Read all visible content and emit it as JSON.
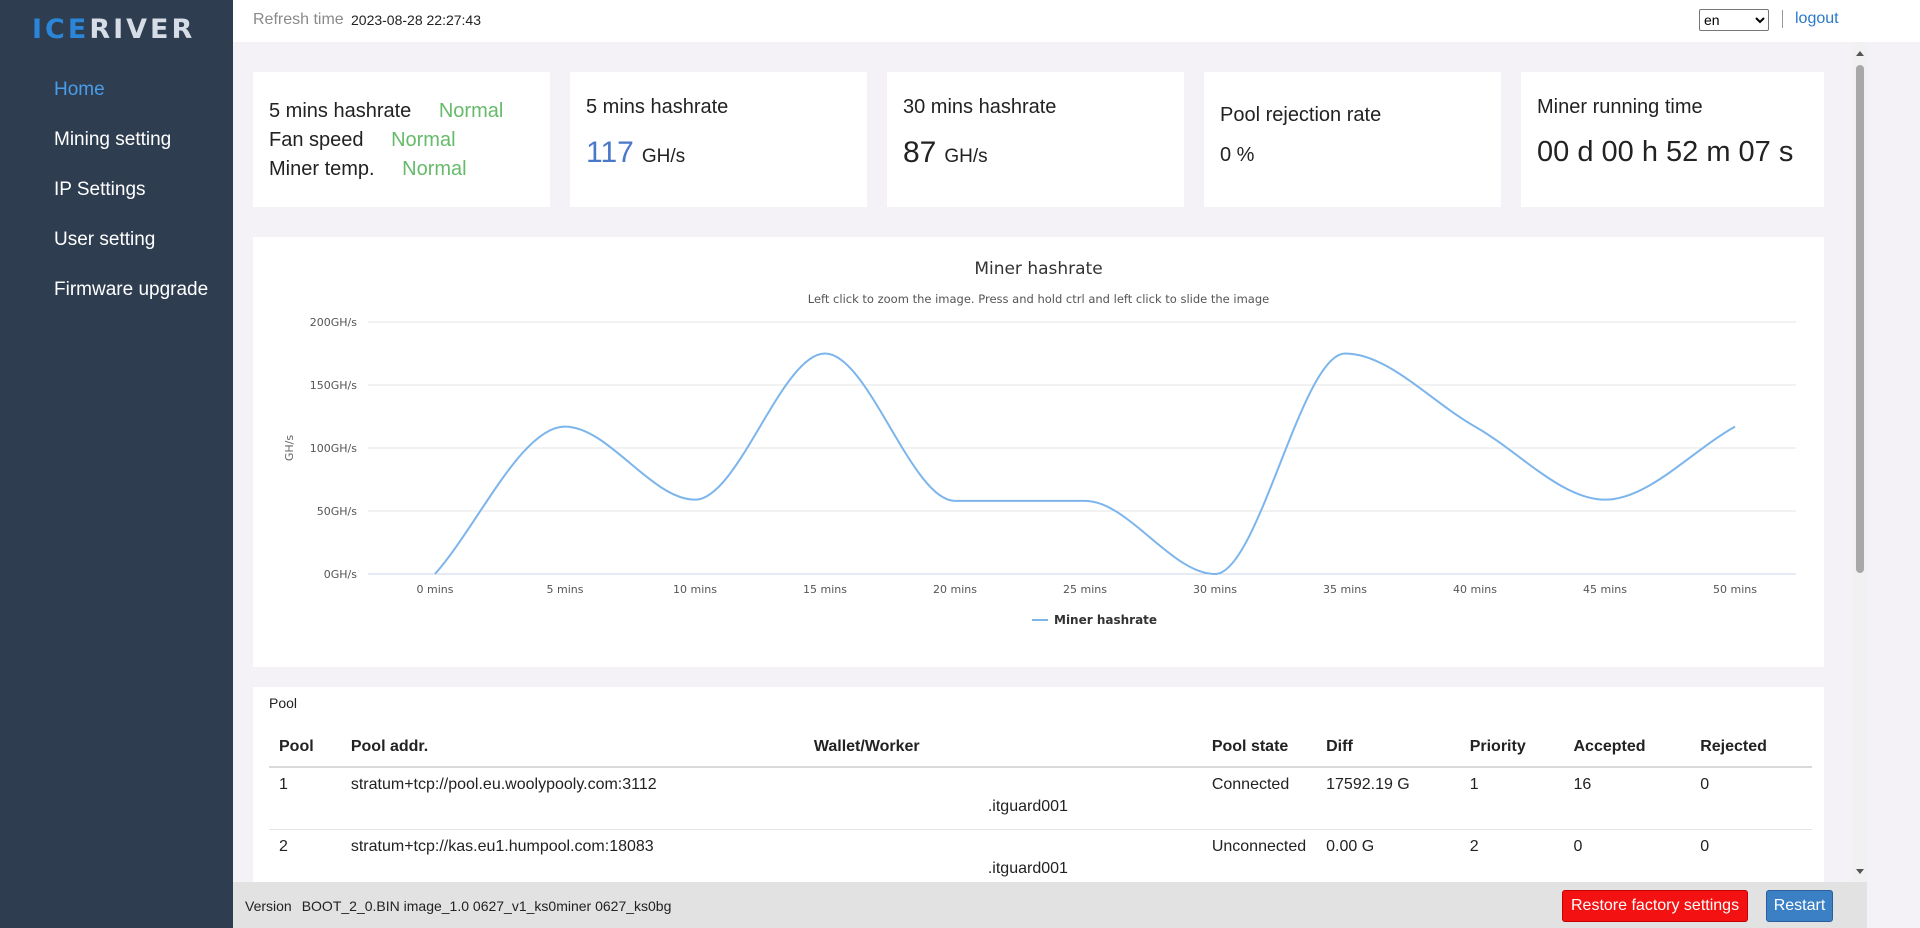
{
  "logo": {
    "part1": "ICE",
    "part2": "RIVER"
  },
  "sidebar": {
    "items": [
      {
        "label": "Home",
        "active": true
      },
      {
        "label": "Mining setting"
      },
      {
        "label": "IP Settings"
      },
      {
        "label": "User setting"
      },
      {
        "label": "Firmware upgrade"
      }
    ]
  },
  "header": {
    "refresh_label": "Refresh time",
    "refresh_value": "2023-08-28 22:27:43",
    "language": "en",
    "language_options": [
      "en"
    ],
    "logout_label": "logout"
  },
  "status_card": {
    "rows": [
      {
        "label": "5 mins hashrate",
        "value": "Normal"
      },
      {
        "label": "Fan speed",
        "value": "Normal"
      },
      {
        "label": "Miner temp.",
        "value": "Normal"
      }
    ]
  },
  "hashrate_5": {
    "title": "5 mins hashrate",
    "value": "117",
    "unit": "GH/s"
  },
  "hashrate_30": {
    "title": "30 mins hashrate",
    "value": "87",
    "unit": "GH/s"
  },
  "rejection": {
    "title": "Pool rejection rate",
    "value": "0 %"
  },
  "running_time": {
    "title": "Miner running time",
    "value": "00 d 00 h 52 m 07 s"
  },
  "chart_data": {
    "type": "line",
    "title": "Miner hashrate",
    "subtitle": "Left click to zoom the image. Press and hold ctrl and left click to slide the image",
    "ylabel": "GH/s",
    "xlabel": "",
    "categories": [
      "0 mins",
      "5 mins",
      "10 mins",
      "15 mins",
      "20 mins",
      "25 mins",
      "30 mins",
      "35 mins",
      "40 mins",
      "45 mins",
      "50 mins"
    ],
    "y_ticks": [
      "0GH/s",
      "50GH/s",
      "100GH/s",
      "150GH/s",
      "200GH/s"
    ],
    "ylim": [
      0,
      200
    ],
    "grid": true,
    "legend": "bottom-center",
    "series": [
      {
        "name": "Miner hashrate",
        "color": "#7cb5ec",
        "values": [
          0,
          117,
          59,
          175,
          58,
          58,
          0,
          175,
          117,
          59,
          117
        ]
      }
    ]
  },
  "pool": {
    "label": "Pool",
    "headers": [
      "Pool",
      "Pool addr.",
      "Wallet/Worker",
      "Pool state",
      "Diff",
      "Priority",
      "Accepted",
      "Rejected"
    ],
    "rows": [
      {
        "pool": "1",
        "addr": "stratum+tcp://pool.eu.woolypooly.com:3112",
        "worker": ".itguard001",
        "state": "Connected",
        "diff": "17592.19 G",
        "priority": "1",
        "accepted": "16",
        "rejected": "0"
      },
      {
        "pool": "2",
        "addr": "stratum+tcp://kas.eu1.humpool.com:18083",
        "worker": ".itguard001",
        "state": "Unconnected",
        "diff": "0.00 G",
        "priority": "2",
        "accepted": "0",
        "rejected": "0"
      }
    ]
  },
  "footer": {
    "version_label": "Version",
    "version_value": "BOOT_2_0.BIN image_1.0 0627_v1_ks0miner 0627_ks0bg",
    "restore_label": "Restore factory settings",
    "restart_label": "Restart"
  }
}
